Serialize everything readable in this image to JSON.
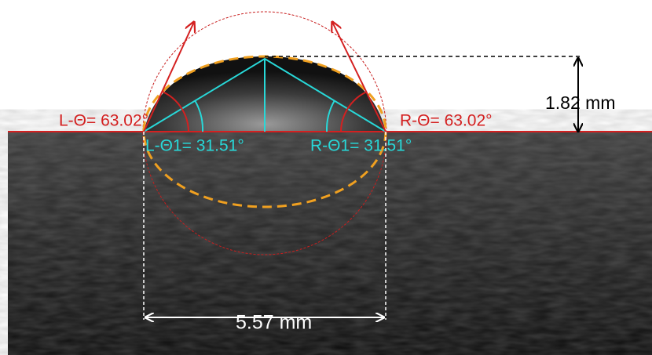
{
  "annotations": {
    "left_angle": "L-Θ= 63.02°",
    "right_angle": "R-Θ= 63.02°",
    "left_half_angle": "L-Θ1= 31.51°",
    "right_half_angle": "R-Θ1= 31.51°",
    "height": "1.82 mm",
    "width": "5.57 mm"
  }
}
